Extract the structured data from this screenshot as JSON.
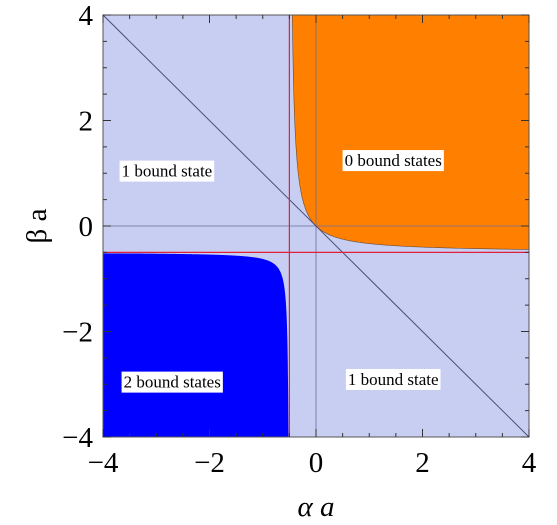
{
  "chart_data": {
    "type": "region",
    "xlabel": "α a",
    "ylabel": "β a",
    "xlim": [
      -4,
      4
    ],
    "ylim": [
      -4,
      4
    ],
    "x_ticks": [
      -4,
      -2,
      0,
      2,
      4
    ],
    "y_ticks": [
      -4,
      -2,
      0,
      2,
      4
    ],
    "x_tick_labels": [
      "−4",
      "−2",
      "0",
      "2",
      "4"
    ],
    "y_tick_labels": [
      "−4",
      "−2",
      "0",
      "2",
      "4"
    ],
    "reference_lines": {
      "red_vertical_x": -0.5,
      "red_horizontal_y": -0.5,
      "diagonal": {
        "from": [
          -4,
          4
        ],
        "to": [
          4,
          -4
        ]
      }
    },
    "regions": [
      {
        "label": "1 bound state",
        "label_at": [
          -2.8,
          1.05
        ],
        "color": "#c8cdf2"
      },
      {
        "label": "0 bound states",
        "label_at": [
          1.45,
          1.25
        ],
        "color": "#ff8000",
        "boundary": "hyperbola",
        "asymptote_x": -0.5,
        "asymptote_y": -0.5,
        "quadrant": "upper-right"
      },
      {
        "label": "2 bound states",
        "label_at": [
          -2.7,
          -2.95
        ],
        "color": "#0000ff",
        "boundary": "hyperbola",
        "asymptote_x": -0.5,
        "asymptote_y": -0.5,
        "quadrant": "lower-left",
        "corner_point": [
          -0.75,
          -0.75
        ]
      },
      {
        "label": "1 bound state",
        "label_at": [
          1.45,
          -2.9
        ],
        "color": "#c8cdf2"
      }
    ],
    "colors": {
      "background_region": "#c8cdf2",
      "zero_states": "#ff8000",
      "two_states": "#0000ff",
      "reference_line": "#e0203a",
      "diagonal": "#4a4f7a",
      "zero_axis": "#6a6f9a"
    }
  }
}
